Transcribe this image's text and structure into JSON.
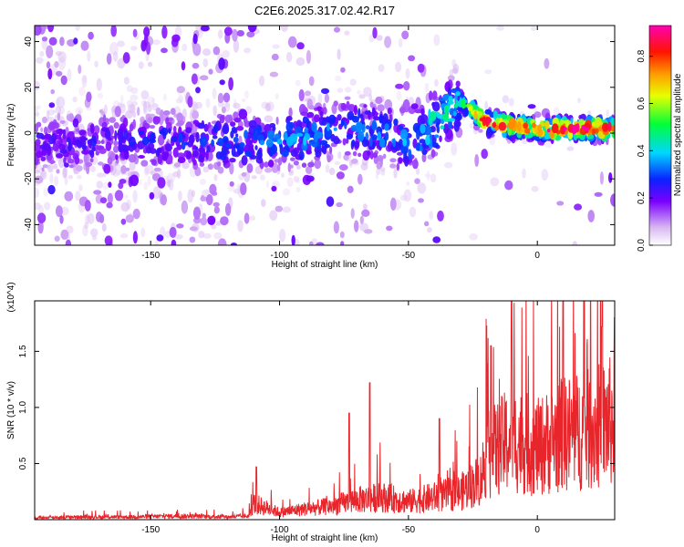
{
  "title": "C2E6.2025.317.02.42.R17",
  "colors": {
    "snr_line": "#e8252a",
    "frame": "#000000"
  },
  "chart_data": [
    {
      "type": "heatmap",
      "title": "C2E6.2025.317.02.42.R17",
      "xlabel": "Height of straight line (km)",
      "ylabel": "Frequency (Hz)",
      "xlim": [
        -195,
        30
      ],
      "ylim": [
        -49,
        47
      ],
      "xticks": [
        -150,
        -100,
        -50,
        0
      ],
      "yticks": [
        -40,
        -20,
        0,
        20,
        40
      ],
      "colorbar": {
        "label": "Normalized spectral amplitude",
        "range": [
          0,
          0.93
        ],
        "ticks": [
          "0.0",
          "0.2",
          "0.4",
          "0.6",
          "0.8"
        ],
        "colormap": "white-purple-blue-cyan-green-yellow-orange-red-magenta"
      },
      "ridge": [
        {
          "x": -195,
          "f": -5,
          "amp": 0.2
        },
        {
          "x": -150,
          "f": -3,
          "amp": 0.25
        },
        {
          "x": -110,
          "f": -4,
          "amp": 0.3
        },
        {
          "x": -90,
          "f": -2,
          "amp": 0.35
        },
        {
          "x": -75,
          "f": 3,
          "amp": 0.3
        },
        {
          "x": -50,
          "f": -3,
          "amp": 0.35
        },
        {
          "x": -40,
          "f": 4,
          "amp": 0.45
        },
        {
          "x": -30,
          "f": 14,
          "amp": 0.4
        },
        {
          "x": -20,
          "f": 5,
          "amp": 0.8
        },
        {
          "x": -10,
          "f": 3,
          "amp": 0.75
        },
        {
          "x": 0,
          "f": 2,
          "amp": 0.85
        },
        {
          "x": 30,
          "f": 2,
          "amp": 0.85
        }
      ]
    },
    {
      "type": "line",
      "xlabel": "Height of straight line (km)",
      "ylabel": "SNR (10 * v/v)",
      "y_multiplier": "(x10^4)",
      "xlim": [
        -195,
        30
      ],
      "ylim": [
        0,
        1.95
      ],
      "xticks": [
        -150,
        -100,
        -50,
        0
      ],
      "yticks": [
        0.5,
        1.0,
        1.5
      ],
      "series": [
        {
          "x": [
            -195,
            -180,
            -160,
            -140,
            -120,
            -112,
            -110,
            -100,
            -90,
            -80,
            -70,
            -60,
            -50,
            -40,
            -30,
            -22,
            -20,
            -10,
            0,
            10,
            20,
            30
          ],
          "y": [
            0.02,
            0.03,
            0.03,
            0.04,
            0.03,
            0.04,
            0.18,
            0.08,
            0.12,
            0.15,
            0.22,
            0.25,
            0.2,
            0.25,
            0.3,
            0.45,
            0.7,
            0.9,
            0.8,
            0.95,
            1.0,
            1.1
          ],
          "peaks": [
            {
              "x": -109,
              "y": 0.47
            },
            {
              "x": -73,
              "y": 0.95
            },
            {
              "x": -65,
              "y": 1.22
            },
            {
              "x": -38,
              "y": 0.9
            },
            {
              "x": -18,
              "y": 1.55
            },
            {
              "x": -10,
              "y": 1.95
            },
            {
              "x": 10,
              "y": 1.95
            },
            {
              "x": 25,
              "y": 1.72
            },
            {
              "x": 30,
              "y": 1.8
            }
          ]
        }
      ]
    }
  ]
}
